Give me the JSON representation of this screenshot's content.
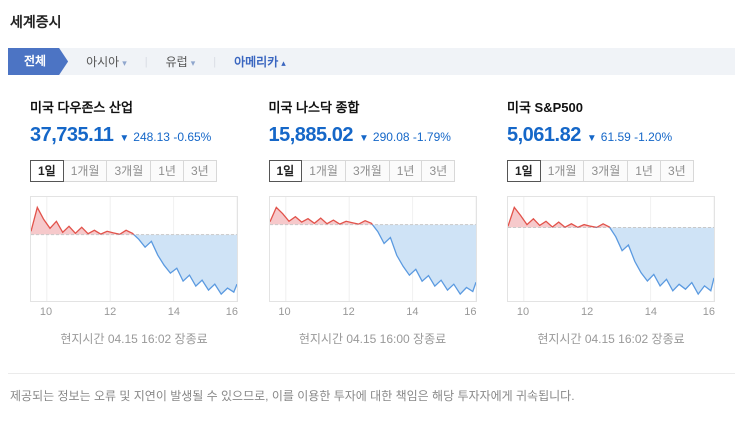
{
  "header": {
    "title": "세계증시"
  },
  "region_tabs": {
    "all_label": "전체",
    "asia_label": "아시아",
    "europe_label": "유럽",
    "america_label": "아메리카",
    "down_arrow": "▾",
    "up_arrow": "▴",
    "separator": "|"
  },
  "period_tabs": [
    "1일",
    "1개월",
    "3개월",
    "1년",
    "3년"
  ],
  "cards": [
    {
      "name": "미국 다우존스 산업",
      "price": "37,735.11",
      "direction_arrow": "▼",
      "change": "248.13 -0.65%",
      "local_time": "현지시간 04.15 16:02 장종료"
    },
    {
      "name": "미국 나스닥 종합",
      "price": "15,885.02",
      "direction_arrow": "▼",
      "change": "290.08 -1.79%",
      "local_time": "현지시간 04.15 16:00 장종료"
    },
    {
      "name": "미국 S&P500",
      "price": "5,061.82",
      "direction_arrow": "▼",
      "change": "61.59 -1.20%",
      "local_time": "현지시간 04.15 16:02 장종료"
    }
  ],
  "footer": {
    "disclaimer": "제공되는 정보는 오류 및 지연이 발생될 수 있으므로, 이를 이용한 투자에 대한 책임은 해당 투자자에게 귀속됩니다."
  },
  "colors": {
    "price_down_blue": "#1567c8",
    "tab_active_blue": "#4c74c4",
    "region_active_text": "#3a66c0",
    "chart_up_line": "#e2534b",
    "chart_up_fill": "#f6c9cb",
    "chart_down_line": "#5b9ae0",
    "chart_down_fill": "#cfe3f6",
    "baseline_gray": "#c8c8c8",
    "grid_gray": "#f0f0f0"
  },
  "chart_data": [
    {
      "type": "area",
      "title": "미국 다우존스 산업 1일 추이",
      "legend": "none",
      "grid": "faint-vertical",
      "x_range": [
        9.5,
        16
      ],
      "xticks": [
        "10",
        "12",
        "14",
        "16"
      ],
      "xtick_hours": [
        10,
        12,
        14,
        16
      ],
      "prev_close": 37983.24,
      "close": 37735.11,
      "x_hours": [
        9.5,
        9.7,
        9.9,
        10.1,
        10.3,
        10.5,
        10.7,
        10.9,
        11.1,
        11.3,
        11.5,
        11.7,
        11.9,
        12.1,
        12.3,
        12.5,
        12.7,
        12.9,
        13.1,
        13.3,
        13.5,
        13.7,
        13.9,
        14.1,
        14.3,
        14.5,
        14.7,
        14.9,
        15.1,
        15.3,
        15.5,
        15.7,
        15.9,
        16.0
      ],
      "values": [
        38000,
        38120,
        38060,
        38015,
        38050,
        37995,
        38025,
        37990,
        38020,
        37988,
        38005,
        37986,
        38000,
        37992,
        37985,
        38005,
        37990,
        37960,
        37920,
        37950,
        37880,
        37830,
        37790,
        37815,
        37750,
        37780,
        37725,
        37755,
        37705,
        37735,
        37685,
        37715,
        37695,
        37735.11
      ]
    },
    {
      "type": "area",
      "title": "미국 나스닥 종합 1일 추이",
      "legend": "none",
      "grid": "faint-vertical",
      "x_range": [
        9.5,
        16
      ],
      "xticks": [
        "10",
        "12",
        "14",
        "16"
      ],
      "xtick_hours": [
        10,
        12,
        14,
        16
      ],
      "prev_close": 16175.1,
      "close": 15885.02,
      "x_hours": [
        9.5,
        9.7,
        9.9,
        10.1,
        10.3,
        10.5,
        10.7,
        10.9,
        11.1,
        11.3,
        11.5,
        11.7,
        11.9,
        12.1,
        12.3,
        12.5,
        12.7,
        12.9,
        13.1,
        13.3,
        13.5,
        13.7,
        13.9,
        14.1,
        14.3,
        14.5,
        14.7,
        14.9,
        15.1,
        15.3,
        15.5,
        15.7,
        15.9,
        16.0
      ],
      "values": [
        16190,
        16262,
        16230,
        16192,
        16215,
        16188,
        16205,
        16182,
        16208,
        16180,
        16198,
        16178,
        16192,
        16185,
        16178,
        16195,
        16182,
        16140,
        16080,
        16110,
        16020,
        15965,
        15920,
        15950,
        15890,
        15918,
        15865,
        15895,
        15845,
        15875,
        15825,
        15858,
        15838,
        15885.02
      ]
    },
    {
      "type": "area",
      "title": "미국 S&P500 1일 추이",
      "legend": "none",
      "grid": "faint-vertical",
      "x_range": [
        9.5,
        16
      ],
      "xticks": [
        "10",
        "12",
        "14",
        "16"
      ],
      "xtick_hours": [
        10,
        12,
        14,
        16
      ],
      "prev_close": 5123.41,
      "close": 5061.82,
      "x_hours": [
        9.5,
        9.7,
        9.9,
        10.1,
        10.3,
        10.5,
        10.7,
        10.9,
        11.1,
        11.3,
        11.5,
        11.7,
        11.9,
        12.1,
        12.3,
        12.5,
        12.7,
        12.9,
        13.1,
        13.3,
        13.5,
        13.7,
        13.9,
        14.1,
        14.3,
        14.5,
        14.7,
        14.9,
        15.1,
        15.3,
        15.5,
        15.7,
        15.9,
        16.0
      ],
      "values": [
        5125,
        5148,
        5138,
        5127,
        5134,
        5126,
        5131,
        5124,
        5130,
        5123.8,
        5128,
        5123.6,
        5127,
        5125,
        5123.5,
        5128,
        5124,
        5112,
        5095,
        5102,
        5082,
        5068,
        5058,
        5066,
        5052,
        5060,
        5046,
        5054,
        5048,
        5056,
        5042,
        5052,
        5046,
        5061.82
      ]
    }
  ]
}
